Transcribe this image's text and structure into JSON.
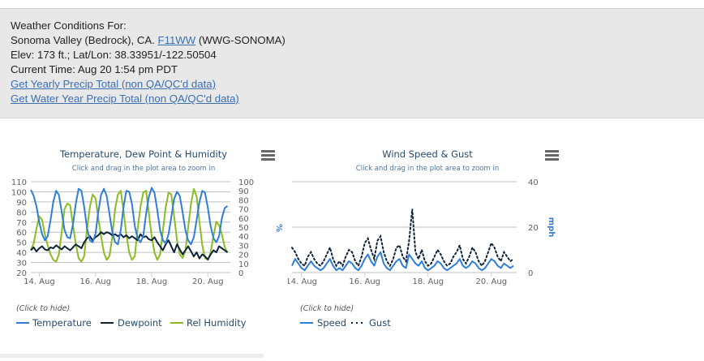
{
  "header": {
    "line1": "Weather Conditions For:",
    "line2_prefix": "Sonoma Valley (Bedrock), CA.",
    "station_link": "F11WW",
    "line2_suffix": "(WWG-SONOMA)",
    "line3": "Elev: 173 ft.; Lat/Lon: 38.33951/-122.50504",
    "line4": "Current Time: Aug 20 1:54 pm PDT",
    "link_yearly": "Get Yearly Precip Total (non QA/QC'd data)",
    "link_water_year": "Get Water Year Precip Total (non QA/QC'd data)"
  },
  "chart_data": [
    {
      "type": "line",
      "title": "Temperature, Dew Point & Humidity",
      "subtitle": "Click and drag in the plot area to zoom in",
      "x_tick_labels": [
        "14. Aug",
        "16. Aug",
        "18. Aug",
        "20. Aug"
      ],
      "x_range_days": [
        13.7,
        20.8
      ],
      "yleft_ticks": [
        20,
        30,
        40,
        50,
        60,
        70,
        80,
        90,
        100,
        110
      ],
      "yleft_range": [
        20,
        110
      ],
      "yright_ticks": [
        0,
        10,
        20,
        30,
        40,
        50,
        60,
        70,
        80,
        90,
        100
      ],
      "yright_range": [
        0,
        100
      ],
      "yright_label": "%",
      "grid": true,
      "legend_hint": "(Click to hide)",
      "legend_position": "bottom-left",
      "series": [
        {
          "name": "Temperature",
          "color": "#2f7ed8",
          "style": "solid",
          "axis": "left",
          "x": [
            13.7,
            13.8,
            13.9,
            14.0,
            14.1,
            14.2,
            14.3,
            14.4,
            14.5,
            14.6,
            14.7,
            14.8,
            14.9,
            15.0,
            15.1,
            15.2,
            15.3,
            15.4,
            15.5,
            15.6,
            15.7,
            15.8,
            15.9,
            16.0,
            16.1,
            16.2,
            16.3,
            16.4,
            16.5,
            16.6,
            16.7,
            16.8,
            16.9,
            17.0,
            17.1,
            17.2,
            17.3,
            17.4,
            17.5,
            17.6,
            17.7,
            17.8,
            17.9,
            18.0,
            18.1,
            18.2,
            18.3,
            18.4,
            18.5,
            18.6,
            18.7,
            18.8,
            18.9,
            19.0,
            19.1,
            19.2,
            19.3,
            19.4,
            19.5,
            19.6,
            19.7,
            19.8,
            19.9,
            20.0,
            20.1,
            20.2,
            20.3,
            20.4,
            20.5,
            20.6,
            20.7
          ],
          "y": [
            102,
            96,
            86,
            70,
            58,
            52,
            56,
            72,
            90,
            101,
            97,
            80,
            62,
            55,
            54,
            68,
            88,
            103,
            101,
            85,
            64,
            52,
            50,
            58,
            80,
            97,
            103,
            96,
            78,
            60,
            50,
            48,
            62,
            85,
            101,
            100,
            88,
            66,
            54,
            50,
            56,
            78,
            95,
            104,
            99,
            82,
            62,
            52,
            49,
            58,
            75,
            93,
            100,
            96,
            80,
            62,
            52,
            48,
            55,
            72,
            90,
            101,
            99,
            84,
            66,
            54,
            50,
            56,
            74,
            84,
            86
          ]
        },
        {
          "name": "Dewpoint",
          "color": "#0d233a",
          "style": "solid",
          "axis": "left",
          "x": [
            13.7,
            13.8,
            13.9,
            14.0,
            14.1,
            14.2,
            14.3,
            14.4,
            14.5,
            14.6,
            14.7,
            14.8,
            14.9,
            15.0,
            15.1,
            15.2,
            15.3,
            15.4,
            15.5,
            15.6,
            15.7,
            15.8,
            15.9,
            16.0,
            16.1,
            16.2,
            16.3,
            16.4,
            16.5,
            16.6,
            16.7,
            16.8,
            16.9,
            17.0,
            17.1,
            17.2,
            17.3,
            17.4,
            17.5,
            17.6,
            17.7,
            17.8,
            17.9,
            18.0,
            18.1,
            18.2,
            18.3,
            18.4,
            18.5,
            18.6,
            18.7,
            18.8,
            18.9,
            19.0,
            19.1,
            19.2,
            19.3,
            19.4,
            19.5,
            19.6,
            19.7,
            19.8,
            19.9,
            20.0,
            20.1,
            20.2,
            20.3,
            20.4,
            20.5,
            20.6,
            20.7
          ],
          "y": [
            42,
            45,
            41,
            44,
            46,
            43,
            42,
            45,
            44,
            47,
            45,
            43,
            46,
            44,
            42,
            45,
            48,
            46,
            44,
            50,
            54,
            56,
            52,
            55,
            57,
            60,
            58,
            60,
            59,
            57,
            58,
            56,
            58,
            55,
            57,
            54,
            56,
            54,
            52,
            58,
            55,
            56,
            53,
            52,
            55,
            50,
            46,
            42,
            48,
            52,
            46,
            40,
            48,
            43,
            38,
            42,
            46,
            41,
            36,
            40,
            34,
            38,
            36,
            33,
            38,
            42,
            40,
            46,
            44,
            42,
            40
          ]
        },
        {
          "name": "Rel Humidity",
          "color": "#8bbc21",
          "style": "solid",
          "axis": "right",
          "x": [
            13.7,
            13.8,
            13.9,
            14.0,
            14.1,
            14.2,
            14.3,
            14.4,
            14.5,
            14.6,
            14.7,
            14.8,
            14.9,
            15.0,
            15.1,
            15.2,
            15.3,
            15.4,
            15.5,
            15.6,
            15.7,
            15.8,
            15.9,
            16.0,
            16.1,
            16.2,
            16.3,
            16.4,
            16.5,
            16.6,
            16.7,
            16.8,
            16.9,
            17.0,
            17.1,
            17.2,
            17.3,
            17.4,
            17.5,
            17.6,
            17.7,
            17.8,
            17.9,
            18.0,
            18.1,
            18.2,
            18.3,
            18.4,
            18.5,
            18.6,
            18.7,
            18.8,
            18.9,
            19.0,
            19.1,
            19.2,
            19.3,
            19.4,
            19.5,
            19.6,
            19.7,
            19.8,
            19.9,
            20.0,
            20.1,
            20.2,
            20.3,
            20.4,
            20.5,
            20.6,
            20.7
          ],
          "y": [
            25,
            32,
            48,
            62,
            58,
            42,
            30,
            20,
            14,
            12,
            20,
            45,
            70,
            76,
            74,
            52,
            32,
            16,
            12,
            18,
            48,
            72,
            86,
            82,
            60,
            40,
            22,
            14,
            18,
            40,
            70,
            86,
            90,
            68,
            42,
            22,
            14,
            18,
            48,
            72,
            88,
            90,
            66,
            40,
            22,
            14,
            20,
            46,
            72,
            88,
            86,
            62,
            36,
            20,
            16,
            24,
            50,
            76,
            92,
            84,
            56,
            30,
            16,
            14,
            22,
            40,
            56,
            52,
            42,
            28,
            22
          ]
        }
      ]
    },
    {
      "type": "line",
      "title": "Wind Speed & Gust",
      "subtitle": "Click and drag in the plot area to zoom in",
      "x_tick_labels": [
        "14. Aug",
        "16. Aug",
        "18. Aug",
        "20. Aug"
      ],
      "x_range_days": [
        13.7,
        20.8
      ],
      "yright_ticks": [
        0,
        20,
        40
      ],
      "yright_range": [
        0,
        40
      ],
      "yright_label": "mph",
      "grid": true,
      "legend_hint": "(Click to hide)",
      "legend_position": "bottom-left",
      "series": [
        {
          "name": "Speed",
          "color": "#2f7ed8",
          "style": "solid",
          "axis": "right",
          "x": [
            13.7,
            13.8,
            13.9,
            14.0,
            14.1,
            14.2,
            14.3,
            14.4,
            14.5,
            14.6,
            14.7,
            14.8,
            14.9,
            15.0,
            15.1,
            15.2,
            15.3,
            15.4,
            15.5,
            15.6,
            15.7,
            15.8,
            15.9,
            16.0,
            16.1,
            16.2,
            16.3,
            16.4,
            16.5,
            16.6,
            16.7,
            16.8,
            16.9,
            17.0,
            17.1,
            17.2,
            17.3,
            17.4,
            17.5,
            17.6,
            17.7,
            17.8,
            17.9,
            18.0,
            18.1,
            18.2,
            18.3,
            18.4,
            18.5,
            18.6,
            18.7,
            18.8,
            18.9,
            19.0,
            19.1,
            19.2,
            19.3,
            19.4,
            19.5,
            19.6,
            19.7,
            19.8,
            19.9,
            20.0,
            20.1,
            20.2,
            20.3,
            20.4,
            20.5,
            20.6,
            20.7
          ],
          "y": [
            3,
            6,
            4,
            2,
            1,
            3,
            5,
            3,
            2,
            1,
            2,
            4,
            6,
            3,
            1,
            2,
            1,
            3,
            5,
            4,
            2,
            1,
            3,
            6,
            8,
            5,
            3,
            7,
            9,
            4,
            2,
            1,
            3,
            5,
            6,
            3,
            2,
            8,
            6,
            4,
            3,
            5,
            2,
            1,
            2,
            3,
            5,
            4,
            2,
            1,
            2,
            3,
            4,
            6,
            3,
            2,
            3,
            5,
            4,
            2,
            1,
            2,
            4,
            6,
            5,
            3,
            2,
            4,
            3,
            2,
            3
          ]
        },
        {
          "name": "Gust",
          "color": "#0d233a",
          "style": "dotted",
          "axis": "right",
          "x": [
            13.7,
            13.8,
            13.9,
            14.0,
            14.1,
            14.2,
            14.3,
            14.4,
            14.5,
            14.6,
            14.7,
            14.8,
            14.9,
            15.0,
            15.1,
            15.2,
            15.3,
            15.4,
            15.5,
            15.6,
            15.7,
            15.8,
            15.9,
            16.0,
            16.1,
            16.2,
            16.3,
            16.4,
            16.5,
            16.6,
            16.7,
            16.8,
            16.9,
            17.0,
            17.1,
            17.2,
            17.3,
            17.4,
            17.5,
            17.6,
            17.7,
            17.8,
            17.9,
            18.0,
            18.1,
            18.2,
            18.3,
            18.4,
            18.5,
            18.6,
            18.7,
            18.8,
            18.9,
            19.0,
            19.1,
            19.2,
            19.3,
            19.4,
            19.5,
            19.6,
            19.7,
            19.8,
            19.9,
            20.0,
            20.1,
            20.2,
            20.3,
            20.4,
            20.5,
            20.6,
            20.7
          ],
          "y": [
            11,
            9,
            6,
            4,
            3,
            7,
            9,
            6,
            4,
            3,
            5,
            8,
            11,
            6,
            3,
            5,
            3,
            7,
            10,
            9,
            5,
            3,
            7,
            13,
            15,
            10,
            6,
            14,
            16,
            9,
            5,
            3,
            6,
            11,
            12,
            7,
            5,
            14,
            28,
            9,
            6,
            10,
            5,
            3,
            4,
            7,
            10,
            8,
            5,
            3,
            4,
            7,
            9,
            12,
            6,
            4,
            7,
            11,
            9,
            5,
            3,
            5,
            9,
            13,
            11,
            7,
            5,
            9,
            7,
            5,
            6
          ]
        }
      ]
    }
  ]
}
